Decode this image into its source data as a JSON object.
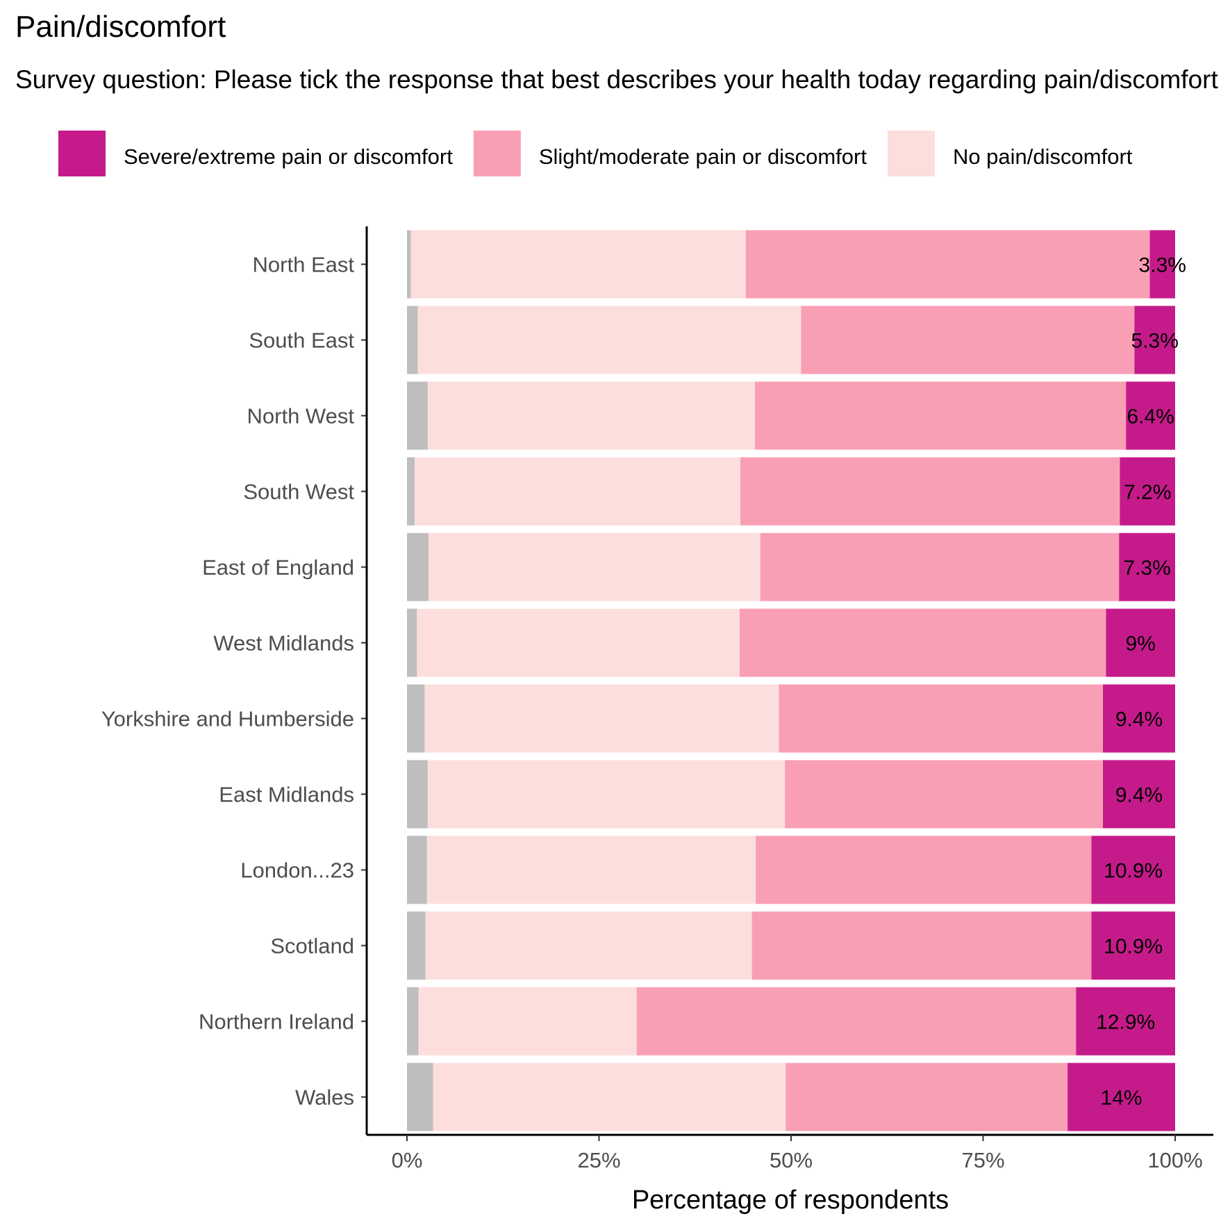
{
  "chart_data": {
    "type": "bar",
    "orientation": "horizontal",
    "stacked": true,
    "title": "Pain/discomfort",
    "subtitle": "Survey question: Please tick the response that best describes your health today regarding pain/discomfort",
    "xlabel": "Percentage of respondents",
    "ylabel": "",
    "xlim": [
      0,
      100
    ],
    "x_ticks": [
      "0%",
      "25%",
      "50%",
      "75%",
      "100%"
    ],
    "x_tick_values": [
      0,
      25,
      50,
      75,
      100
    ],
    "legend_position": "top",
    "grid": false,
    "categories": [
      "North East",
      "South East",
      "North West",
      "South West",
      "East of England",
      "West Midlands",
      "Yorkshire and Humberside",
      "East Midlands",
      "London...23",
      "Scotland",
      "Northern Ireland",
      "Wales"
    ],
    "series": [
      {
        "name": "",
        "color": "#bebebe",
        "values": [
          0.5,
          1.4,
          2.7,
          1.0,
          2.8,
          1.3,
          2.3,
          2.7,
          2.6,
          2.4,
          1.5,
          3.4
        ],
        "in_legend": false
      },
      {
        "name": "No pain/discomfort",
        "color": "#fcdfdd",
        "values": [
          43.6,
          49.9,
          42.6,
          42.4,
          43.2,
          42.0,
          46.1,
          46.5,
          42.8,
          42.5,
          28.4,
          45.9
        ]
      },
      {
        "name": "Slight/moderate pain or discomfort",
        "color": "#f99fb5",
        "values": [
          52.6,
          43.4,
          48.3,
          49.4,
          46.7,
          47.7,
          42.2,
          41.4,
          43.7,
          44.2,
          57.2,
          36.7
        ]
      },
      {
        "name": "Severe/extreme pain or discomfort",
        "color": "#c51b8a",
        "values": [
          3.3,
          5.3,
          6.4,
          7.2,
          7.3,
          9.0,
          9.4,
          9.4,
          10.9,
          10.9,
          12.9,
          14.0
        ]
      }
    ],
    "data_labels": [
      "3.3%",
      "5.3%",
      "6.4%",
      "7.2%",
      "7.3%",
      "9%",
      "9.4%",
      "9.4%",
      "10.9%",
      "10.9%",
      "12.9%",
      "14%"
    ]
  }
}
